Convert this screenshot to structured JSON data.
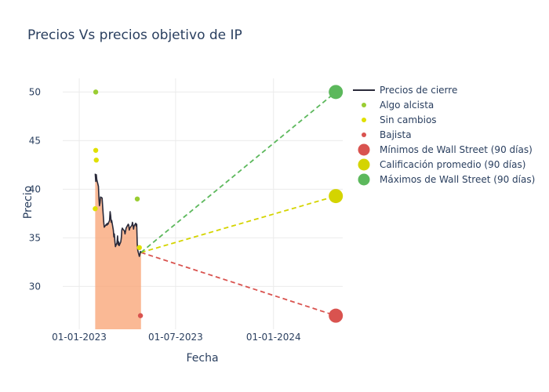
{
  "chart_data": {
    "type": "line",
    "title": "Precios Vs precios objetivo de IP",
    "xlabel": "Fecha",
    "ylabel": "Precio",
    "x_range": [
      "2022-12-01",
      "2024-05-10"
    ],
    "y_range": [
      25.6,
      51.4
    ],
    "x_ticks": [
      {
        "date": "2023-01-01",
        "label": "01-01-2023"
      },
      {
        "date": "2023-07-01",
        "label": "01-07-2023"
      },
      {
        "date": "2024-01-01",
        "label": "01-01-2024"
      }
    ],
    "y_ticks": [
      30,
      35,
      40,
      45,
      50
    ],
    "grid": true,
    "legend_position": "right",
    "colors": {
      "close_line": "#2a2a3a",
      "close_fill": "#f9a77a",
      "algo_alcista": "#9acd32",
      "sin_cambios": "#e0e000",
      "bajista": "#d9534f",
      "minimos": "#d9534f",
      "promedio": "#d4d400",
      "maximos": "#5cb85c",
      "grid": "#ebebeb",
      "text": "#2a3f5f"
    },
    "close_prices": [
      [
        "2023-01-31",
        41.6
      ],
      [
        "2023-02-01",
        40.8
      ],
      [
        "2023-02-02",
        41.5
      ],
      [
        "2023-02-03",
        41.0
      ],
      [
        "2023-02-06",
        40.3
      ],
      [
        "2023-02-07",
        39.0
      ],
      [
        "2023-02-08",
        38.3
      ],
      [
        "2023-02-09",
        38.6
      ],
      [
        "2023-02-10",
        39.2
      ],
      [
        "2023-02-13",
        39.1
      ],
      [
        "2023-02-14",
        38.2
      ],
      [
        "2023-02-15",
        37.4
      ],
      [
        "2023-02-16",
        36.6
      ],
      [
        "2023-02-17",
        36.1
      ],
      [
        "2023-02-21",
        36.4
      ],
      [
        "2023-02-22",
        36.3
      ],
      [
        "2023-02-23",
        36.5
      ],
      [
        "2023-02-24",
        36.4
      ],
      [
        "2023-02-27",
        36.8
      ],
      [
        "2023-02-28",
        37.7
      ],
      [
        "2023-03-01",
        37.3
      ],
      [
        "2023-03-02",
        36.6
      ],
      [
        "2023-03-03",
        36.8
      ],
      [
        "2023-03-06",
        35.8
      ],
      [
        "2023-03-07",
        35.1
      ],
      [
        "2023-03-08",
        35.4
      ],
      [
        "2023-03-09",
        34.6
      ],
      [
        "2023-03-10",
        34.1
      ],
      [
        "2023-03-13",
        34.5
      ],
      [
        "2023-03-14",
        35.2
      ],
      [
        "2023-03-15",
        34.3
      ],
      [
        "2023-03-16",
        34.6
      ],
      [
        "2023-03-17",
        34.2
      ],
      [
        "2023-03-20",
        34.6
      ],
      [
        "2023-03-21",
        35.0
      ],
      [
        "2023-03-22",
        35.8
      ],
      [
        "2023-03-23",
        36.0
      ],
      [
        "2023-03-24",
        35.9
      ],
      [
        "2023-03-27",
        35.7
      ],
      [
        "2023-03-28",
        35.4
      ],
      [
        "2023-03-29",
        35.7
      ],
      [
        "2023-03-30",
        36.0
      ],
      [
        "2023-03-31",
        36.1
      ],
      [
        "2023-04-03",
        36.4
      ],
      [
        "2023-04-04",
        36.3
      ],
      [
        "2023-04-05",
        35.8
      ],
      [
        "2023-04-06",
        36.0
      ],
      [
        "2023-04-10",
        36.3
      ],
      [
        "2023-04-11",
        36.6
      ],
      [
        "2023-04-12",
        36.3
      ],
      [
        "2023-04-13",
        35.9
      ],
      [
        "2023-04-14",
        36.2
      ],
      [
        "2023-04-17",
        36.5
      ],
      [
        "2023-04-18",
        36.2
      ],
      [
        "2023-04-19",
        36.4
      ],
      [
        "2023-04-20",
        34.4
      ],
      [
        "2023-04-21",
        33.7
      ],
      [
        "2023-04-24",
        33.1
      ],
      [
        "2023-04-25",
        33.3
      ],
      [
        "2023-04-26",
        33.6
      ],
      [
        "2023-04-27",
        33.5
      ]
    ],
    "rating_points": [
      {
        "category": "Algo alcista",
        "date": "2023-02-01",
        "value": 50
      },
      {
        "category": "Algo alcista",
        "date": "2023-04-20",
        "value": 39
      },
      {
        "category": "Sin cambios",
        "date": "2023-02-01",
        "value": 44
      },
      {
        "category": "Sin cambios",
        "date": "2023-02-02",
        "value": 43
      },
      {
        "category": "Sin cambios",
        "date": "2023-01-31",
        "value": 38
      },
      {
        "category": "Sin cambios",
        "date": "2023-04-24",
        "value": 34
      },
      {
        "category": "Bajista",
        "date": "2023-04-26",
        "value": 27
      }
    ],
    "targets": {
      "start": {
        "date": "2023-04-27",
        "value": 33.5
      },
      "end_date": "2024-04-27",
      "minimos": 27,
      "promedio": 39.3,
      "maximos": 50
    },
    "legend": [
      {
        "label": "Precios de cierre",
        "kind": "line",
        "color_key": "close_line"
      },
      {
        "label": "Algo alcista",
        "kind": "dot",
        "color_key": "algo_alcista"
      },
      {
        "label": "Sin cambios",
        "kind": "dot",
        "color_key": "sin_cambios"
      },
      {
        "label": "Bajista",
        "kind": "dot",
        "color_key": "bajista"
      },
      {
        "label": "Mínimos de Wall Street (90 días)",
        "kind": "big",
        "color_key": "minimos"
      },
      {
        "label": "Calificación promedio (90 días)",
        "kind": "big",
        "color_key": "promedio"
      },
      {
        "label": "Máximos de Wall Street (90 días)",
        "kind": "big",
        "color_key": "maximos"
      }
    ]
  }
}
